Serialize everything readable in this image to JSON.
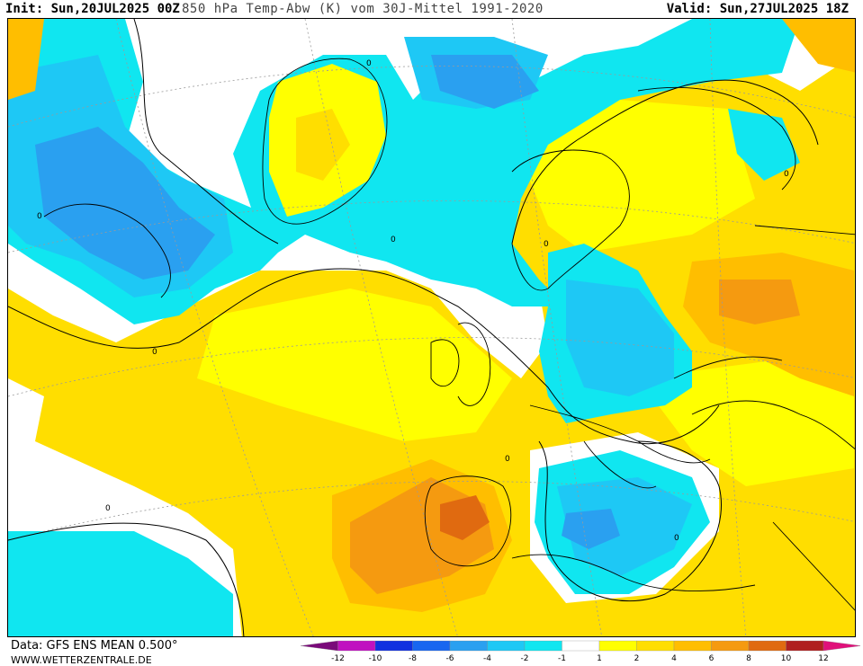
{
  "header": {
    "init": "Init: Sun,20JUL2025 00Z",
    "title": "850 hPa Temp-Abw (K) vom 30J-Mittel 1991-2020",
    "valid": "Valid: Sun,27JUL2025 18Z"
  },
  "footer": {
    "source": "Data: GFS ENS MEAN 0.500°",
    "site": "WWW.WETTERZENTRALE.DE"
  },
  "legend": {
    "colors": [
      "#7a0a7a",
      "#c010c0",
      "#1030e0",
      "#1866f0",
      "#2aa0f0",
      "#1ec8f5",
      "#10e6f0",
      "#ffffff",
      "#ffff00",
      "#ffde00",
      "#ffbe00",
      "#f59a10",
      "#e06a10",
      "#b02020",
      "#e0107a"
    ],
    "ticks": [
      "-12",
      "-10",
      "-8",
      "-6",
      "-4",
      "-2",
      "-1",
      "1",
      "2",
      "4",
      "6",
      "8",
      "10",
      "12"
    ]
  },
  "map": {
    "contour_label": "0"
  }
}
